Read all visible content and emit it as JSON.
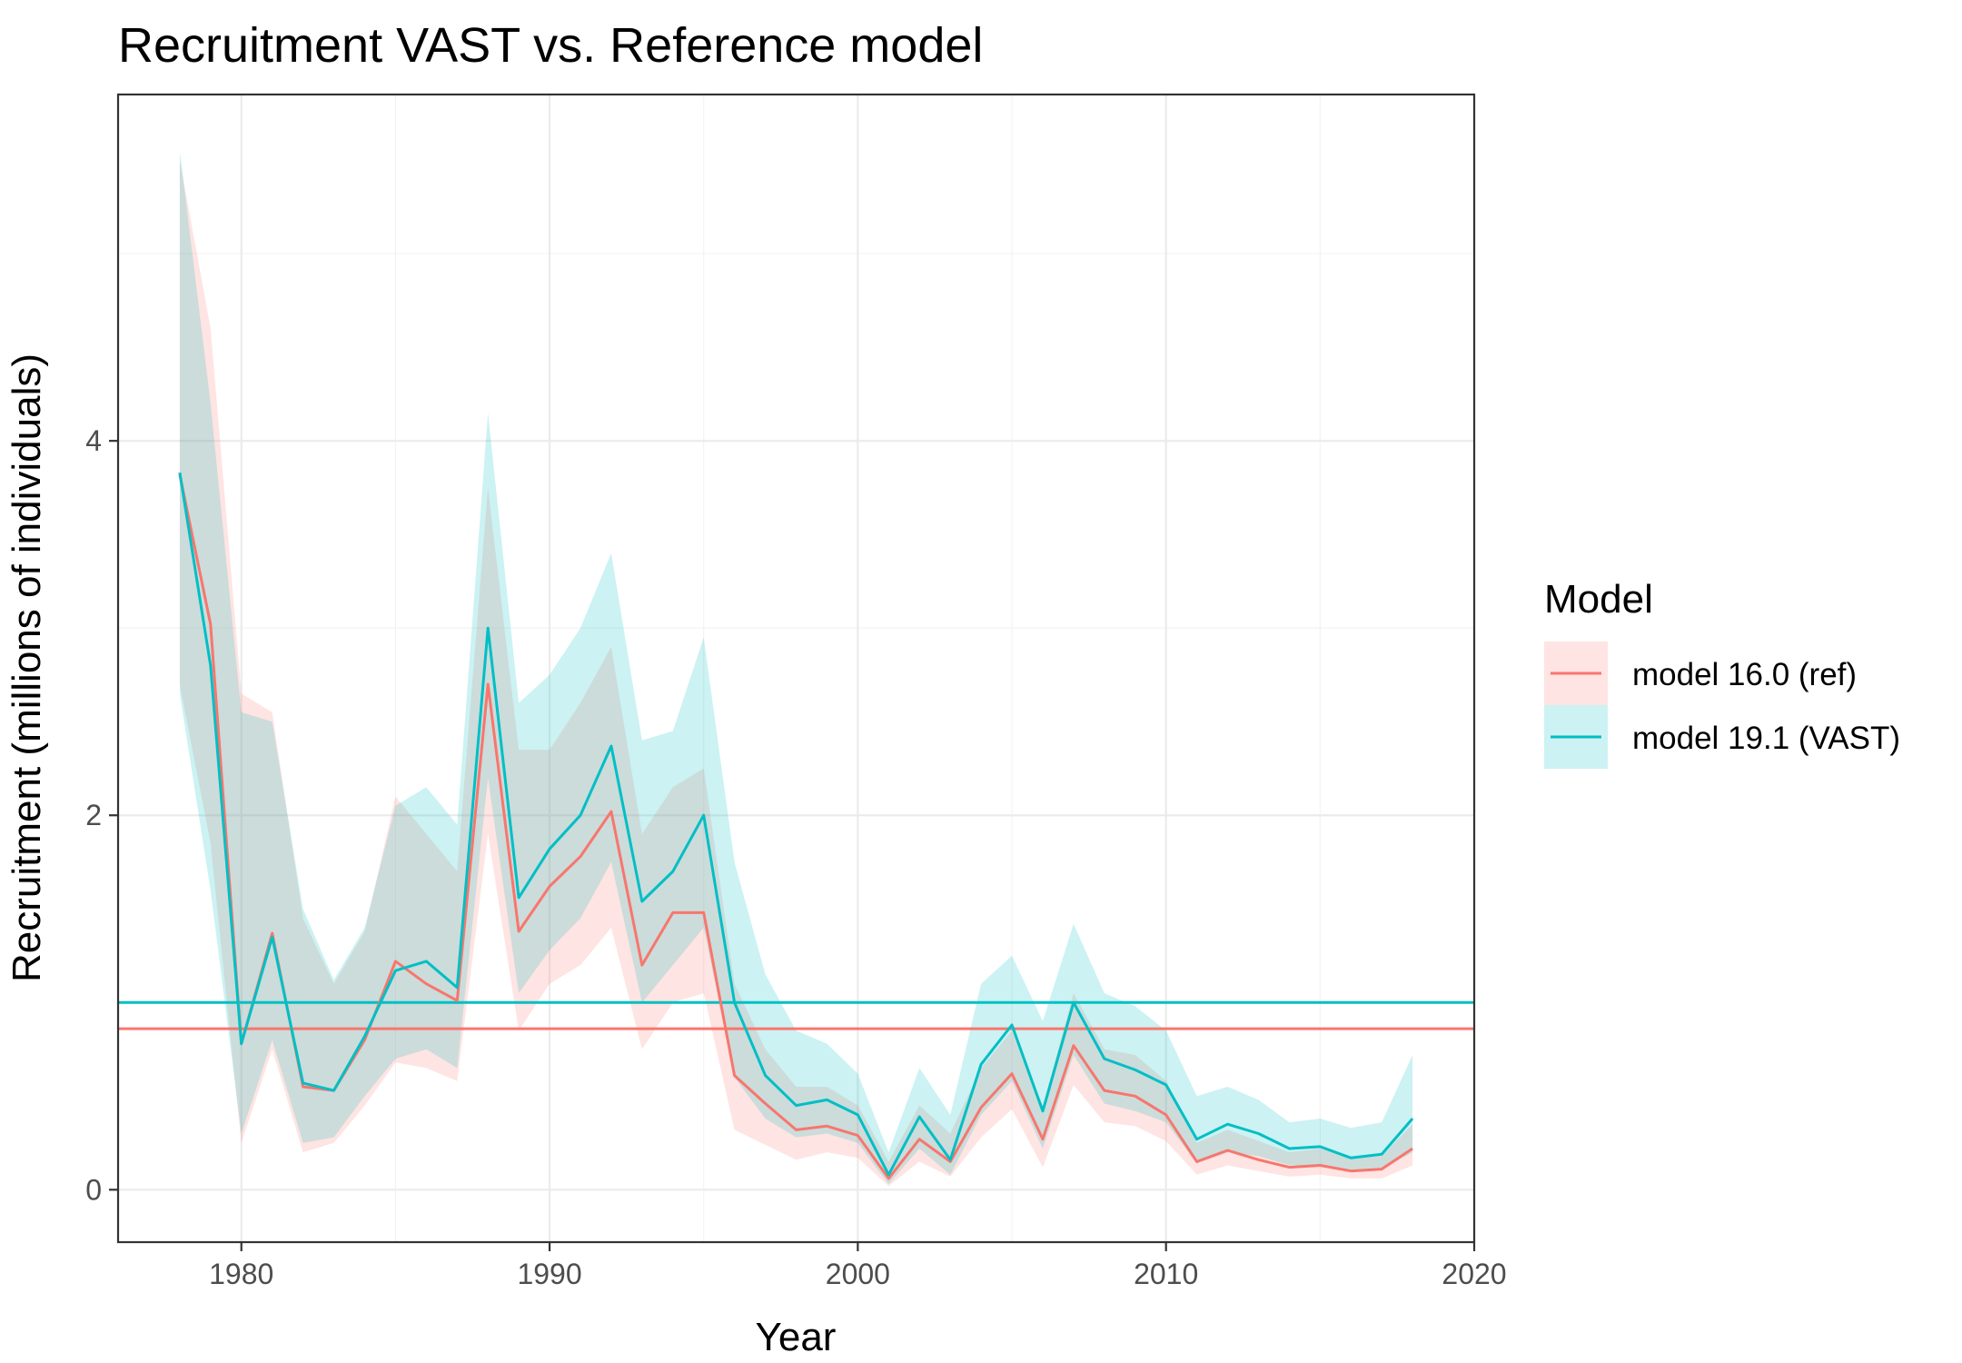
{
  "chart_data": {
    "type": "line",
    "title": "Recruitment VAST vs. Reference model",
    "xlabel": "Year",
    "ylabel": "Recruitment (millions of individuals)",
    "xlim": [
      1976,
      2020
    ],
    "ylim": [
      -0.28,
      5.85
    ],
    "x_ticks": [
      1980,
      1990,
      2000,
      2010,
      2020
    ],
    "y_ticks": [
      0,
      2,
      4
    ],
    "x_tick_labels": [
      "1980",
      "1990",
      "2000",
      "2010",
      "2020"
    ],
    "y_tick_labels": [
      "0",
      "2",
      "4"
    ],
    "grid": true,
    "legend": {
      "title": "Model",
      "position": "right",
      "entries": [
        {
          "label": "model 16.0 (ref)",
          "color": "#F8766D"
        },
        {
          "label": "model 19.1 (VAST)",
          "color": "#00BFC4"
        }
      ]
    },
    "x": [
      1978,
      1979,
      1980,
      1981,
      1982,
      1983,
      1984,
      1985,
      1986,
      1987,
      1988,
      1989,
      1990,
      1991,
      1992,
      1993,
      1994,
      1995,
      1996,
      1997,
      1998,
      1999,
      2000,
      2001,
      2002,
      2003,
      2004,
      2005,
      2006,
      2007,
      2008,
      2009,
      2010,
      2011,
      2012,
      2013,
      2014,
      2015,
      2016,
      2017,
      2018
    ],
    "series": [
      {
        "name": "model 16.0 (ref)",
        "color": "#F8766D",
        "values": [
          3.82,
          3.02,
          0.78,
          1.37,
          0.55,
          0.53,
          0.8,
          1.22,
          1.1,
          1.01,
          2.7,
          1.38,
          1.62,
          1.78,
          2.02,
          1.2,
          1.48,
          1.48,
          0.61,
          0.46,
          0.32,
          0.34,
          0.29,
          0.06,
          0.27,
          0.15,
          0.44,
          0.62,
          0.27,
          0.77,
          0.53,
          0.5,
          0.4,
          0.15,
          0.21,
          0.16,
          0.12,
          0.13,
          0.1,
          0.11,
          0.22
        ],
        "lower": [
          2.7,
          1.85,
          0.25,
          0.75,
          0.2,
          0.25,
          0.45,
          0.68,
          0.65,
          0.58,
          1.9,
          0.85,
          1.1,
          1.2,
          1.4,
          0.75,
          1.0,
          1.05,
          0.32,
          0.24,
          0.16,
          0.2,
          0.17,
          0.02,
          0.15,
          0.07,
          0.28,
          0.43,
          0.12,
          0.56,
          0.36,
          0.34,
          0.26,
          0.08,
          0.13,
          0.1,
          0.07,
          0.08,
          0.06,
          0.06,
          0.13
        ],
        "upper": [
          5.5,
          4.6,
          2.65,
          2.55,
          1.45,
          1.1,
          1.38,
          2.1,
          1.9,
          1.7,
          3.75,
          2.35,
          2.35,
          2.6,
          2.9,
          1.9,
          2.15,
          2.25,
          1.1,
          0.75,
          0.55,
          0.55,
          0.45,
          0.15,
          0.45,
          0.3,
          0.65,
          0.85,
          0.45,
          1.05,
          0.75,
          0.72,
          0.58,
          0.25,
          0.32,
          0.26,
          0.2,
          0.22,
          0.17,
          0.18,
          0.35
        ],
        "hline": 0.86
      },
      {
        "name": "model 19.1 (VAST)",
        "color": "#00BFC4",
        "values": [
          3.83,
          2.8,
          0.78,
          1.35,
          0.57,
          0.53,
          0.82,
          1.17,
          1.22,
          1.08,
          3.0,
          1.56,
          1.82,
          2.0,
          2.37,
          1.54,
          1.7,
          2.0,
          1.0,
          0.61,
          0.45,
          0.48,
          0.4,
          0.08,
          0.39,
          0.16,
          0.67,
          0.88,
          0.42,
          1.0,
          0.7,
          0.64,
          0.56,
          0.27,
          0.35,
          0.3,
          0.22,
          0.23,
          0.17,
          0.19,
          0.38
        ],
        "lower": [
          2.65,
          1.6,
          0.3,
          0.8,
          0.25,
          0.28,
          0.5,
          0.7,
          0.75,
          0.65,
          2.2,
          1.05,
          1.28,
          1.45,
          1.75,
          1.0,
          1.2,
          1.4,
          0.6,
          0.38,
          0.28,
          0.3,
          0.25,
          0.03,
          0.22,
          0.08,
          0.4,
          0.58,
          0.22,
          0.72,
          0.46,
          0.42,
          0.36,
          0.14,
          0.2,
          0.18,
          0.13,
          0.13,
          0.1,
          0.11,
          0.2
        ],
        "upper": [
          5.55,
          4.2,
          2.55,
          2.5,
          1.5,
          1.12,
          1.4,
          2.05,
          2.15,
          1.95,
          4.15,
          2.6,
          2.75,
          3.0,
          3.4,
          2.4,
          2.45,
          2.95,
          1.75,
          1.15,
          0.85,
          0.78,
          0.62,
          0.2,
          0.65,
          0.4,
          1.1,
          1.25,
          0.9,
          1.42,
          1.05,
          0.98,
          0.85,
          0.5,
          0.55,
          0.48,
          0.36,
          0.38,
          0.33,
          0.36,
          0.72
        ],
        "hline": 1.0
      }
    ]
  }
}
